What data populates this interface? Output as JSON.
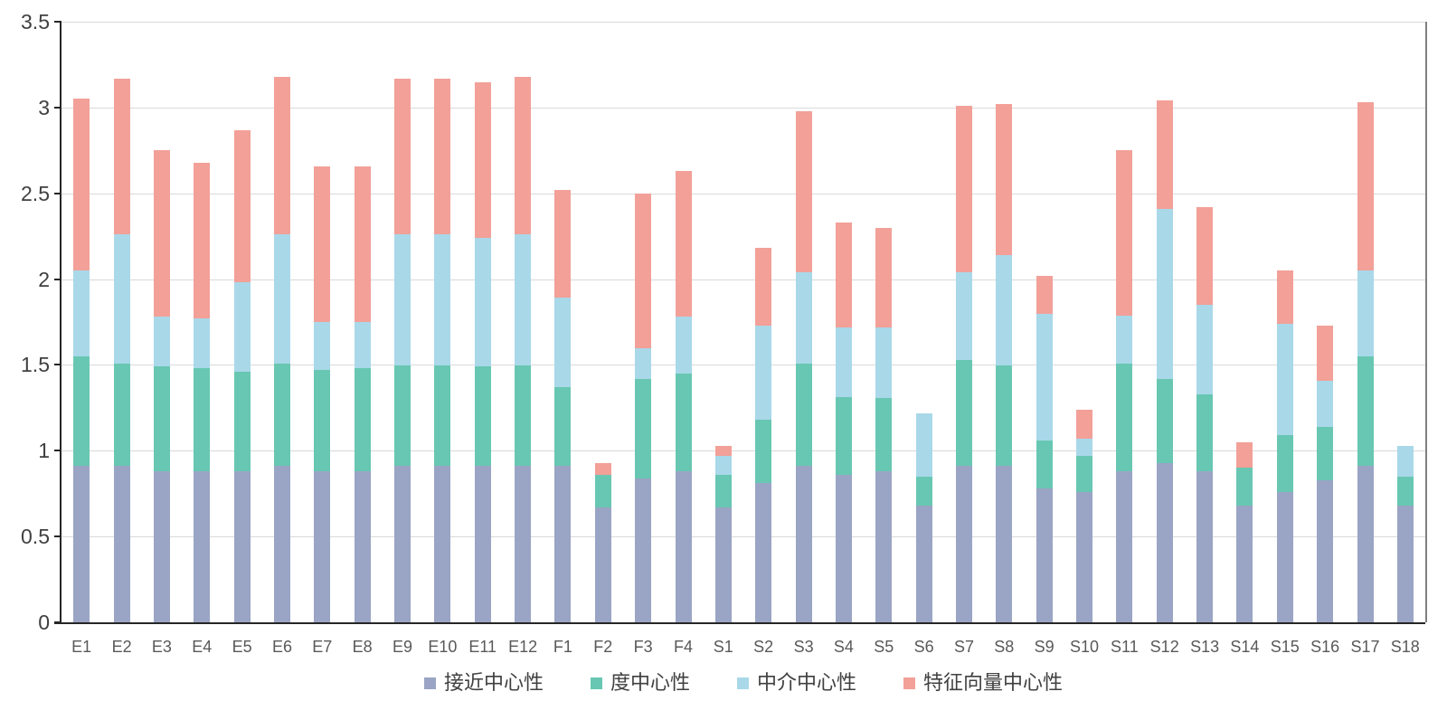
{
  "chart_data": {
    "type": "bar",
    "stacked": true,
    "title": "",
    "xlabel": "",
    "ylabel": "",
    "ylim": [
      0,
      3.5
    ],
    "ytick_labels": [
      "0",
      "0.5",
      "1",
      "1.5",
      "2",
      "2.5",
      "3",
      "3.5"
    ],
    "ytick_values": [
      0,
      0.5,
      1,
      1.5,
      2,
      2.5,
      3,
      3.5
    ],
    "grid": "horizontal-light",
    "legend_position": "bottom-center",
    "categories": [
      "E1",
      "E2",
      "E3",
      "E4",
      "E5",
      "E6",
      "E7",
      "E8",
      "E9",
      "E10",
      "E11",
      "E12",
      "F1",
      "F2",
      "F3",
      "F4",
      "S1",
      "S2",
      "S3",
      "S4",
      "S5",
      "S6",
      "S7",
      "S8",
      "S9",
      "S10",
      "S11",
      "S12",
      "S13",
      "S14",
      "S15",
      "S16",
      "S17",
      "S18"
    ],
    "series": [
      {
        "name": "接近中心性",
        "color": "#9aa4c4",
        "values": [
          0.91,
          0.91,
          0.88,
          0.88,
          0.88,
          0.91,
          0.88,
          0.88,
          0.91,
          0.91,
          0.91,
          0.91,
          0.91,
          0.67,
          0.84,
          0.88,
          0.67,
          0.81,
          0.91,
          0.86,
          0.88,
          0.68,
          0.91,
          0.91,
          0.78,
          0.76,
          0.88,
          0.93,
          0.88,
          0.68,
          0.76,
          0.83,
          0.91,
          0.68
        ]
      },
      {
        "name": "度中心性",
        "color": "#68c7b2",
        "values": [
          0.64,
          0.6,
          0.61,
          0.6,
          0.58,
          0.6,
          0.59,
          0.6,
          0.59,
          0.59,
          0.58,
          0.59,
          0.46,
          0.19,
          0.58,
          0.57,
          0.19,
          0.37,
          0.6,
          0.45,
          0.43,
          0.17,
          0.62,
          0.59,
          0.28,
          0.21,
          0.63,
          0.49,
          0.45,
          0.22,
          0.33,
          0.31,
          0.64,
          0.17
        ]
      },
      {
        "name": "中介中心性",
        "color": "#a9d8e9",
        "values": [
          0.5,
          0.75,
          0.29,
          0.29,
          0.52,
          0.75,
          0.28,
          0.27,
          0.76,
          0.76,
          0.75,
          0.76,
          0.52,
          0.0,
          0.18,
          0.33,
          0.11,
          0.55,
          0.53,
          0.41,
          0.41,
          0.37,
          0.51,
          0.64,
          0.74,
          0.1,
          0.28,
          0.99,
          0.52,
          0.0,
          0.65,
          0.27,
          0.5,
          0.18
        ]
      },
      {
        "name": "特征向量中心性",
        "color": "#f2a098",
        "values": [
          1.0,
          0.91,
          0.97,
          0.91,
          0.89,
          0.92,
          0.91,
          0.91,
          0.91,
          0.91,
          0.91,
          0.92,
          0.63,
          0.07,
          0.9,
          0.85,
          0.06,
          0.45,
          0.94,
          0.61,
          0.58,
          0.0,
          0.97,
          0.88,
          0.22,
          0.17,
          0.96,
          0.63,
          0.57,
          0.15,
          0.31,
          0.32,
          0.98,
          0.0
        ]
      }
    ],
    "colors": {
      "gridline": "#d9d9d9",
      "axis_spine": "#262626",
      "right_border": "#7f7f7f",
      "ytick_label": "#404040",
      "xtick_label": "#595959",
      "legend_label": "#404040",
      "background": "#ffffff"
    }
  }
}
